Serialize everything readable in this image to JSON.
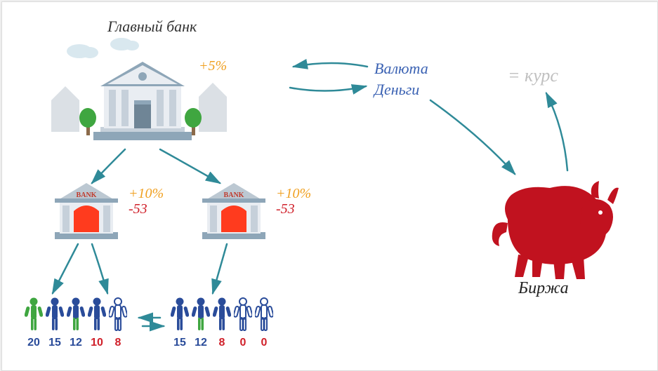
{
  "title": "Главный банк",
  "currency_label": "Валюта",
  "money_label": "Деньги",
  "rate_label": "= курс",
  "exchange_label": "Биржа",
  "central_bank": {
    "rate": "+5%",
    "rate_color": "#f0a020"
  },
  "sub_banks": [
    {
      "sign": "BANK",
      "rate": "+10%",
      "loss": "-53",
      "rate_color": "#f0a020",
      "loss_color": "#d0202a"
    },
    {
      "sign": "BANK",
      "rate": "+10%",
      "loss": "-53",
      "rate_color": "#f0a020",
      "loss_color": "#d0202a"
    }
  ],
  "people_groups": [
    {
      "people": [
        {
          "fill": "#3fa640",
          "outline": "#3fa640"
        },
        {
          "fill": "#2a4c9a",
          "outline": "#2a4c9a"
        },
        {
          "fill": "#2a4c9a",
          "outline": "#2a4c9a",
          "half": "#3fa640"
        },
        {
          "fill": "#2a4c9a",
          "outline": "#2a4c9a"
        },
        {
          "fill": "none",
          "outline": "#2a4c9a"
        }
      ],
      "numbers": [
        {
          "v": "20",
          "color": "blue"
        },
        {
          "v": "15",
          "color": "blue"
        },
        {
          "v": "12",
          "color": "blue"
        },
        {
          "v": "10",
          "color": "red"
        },
        {
          "v": "8",
          "color": "red"
        }
      ]
    },
    {
      "people": [
        {
          "fill": "#2a4c9a",
          "outline": "#2a4c9a"
        },
        {
          "fill": "#2a4c9a",
          "outline": "#2a4c9a",
          "half": "#3fa640"
        },
        {
          "fill": "#2a4c9a",
          "outline": "#2a4c9a"
        },
        {
          "fill": "none",
          "outline": "#2a4c9a"
        },
        {
          "fill": "none",
          "outline": "#2a4c9a"
        }
      ],
      "numbers": [
        {
          "v": "15",
          "color": "blue"
        },
        {
          "v": "12",
          "color": "blue"
        },
        {
          "v": "8",
          "color": "red"
        },
        {
          "v": "0",
          "color": "red"
        },
        {
          "v": "0",
          "color": "red"
        }
      ]
    }
  ],
  "colors": {
    "bank_wall": "#e9edf2",
    "bank_roof": "#8ea6b8",
    "bank_column": "#c6d0da",
    "bank_door": "#6f8596",
    "small_bank_door": "#ff3b1e",
    "cloud": "#d9e8ef",
    "tree": "#3fa640",
    "trunk": "#8b6a4a",
    "bull": "#c1121f",
    "arrow": "#2f8a98",
    "sky_buildings": "#c3ccd4"
  }
}
